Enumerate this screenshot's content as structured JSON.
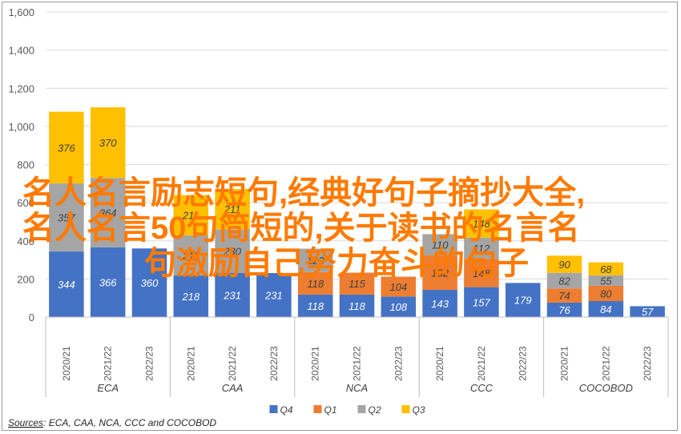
{
  "chart_data": {
    "type": "bar",
    "stacked": true,
    "categories": [
      {
        "group": "ECA",
        "year": "2020/21"
      },
      {
        "group": "ECA",
        "year": "2021/22"
      },
      {
        "group": "ECA",
        "year": "2022/23"
      },
      {
        "group": "CAA",
        "year": "2020/21"
      },
      {
        "group": "CAA",
        "year": "2021/22"
      },
      {
        "group": "CAA",
        "year": "2022/23"
      },
      {
        "group": "NCA",
        "year": "2020/21"
      },
      {
        "group": "NCA",
        "year": "2021/22"
      },
      {
        "group": "NCA",
        "year": "2022/23"
      },
      {
        "group": "CCC",
        "year": "2020/21"
      },
      {
        "group": "CCC",
        "year": "2021/22"
      },
      {
        "group": "CCC",
        "year": "2022/23"
      },
      {
        "group": "COCOBOD",
        "year": "2020/21"
      },
      {
        "group": "COCOBOD",
        "year": "2021/22"
      },
      {
        "group": "COCOBOD",
        "year": "2022/23"
      }
    ],
    "groups": [
      "ECA",
      "CAA",
      "NCA",
      "CCC",
      "COCOBOD"
    ],
    "series": [
      {
        "name": "Q4",
        "color": "#4472c4",
        "text_color": "#ffffff",
        "values": [
          344,
          366,
          360,
          218,
          231,
          231,
          118,
          118,
          108,
          143,
          157,
          179,
          76,
          84,
          57
        ]
      },
      {
        "name": "Q1",
        "color": "#ed7d31",
        "text_color": "#404040",
        "values": [
          null,
          null,
          null,
          null,
          null,
          null,
          118,
          115,
          104,
          182,
          148,
          null,
          74,
          80,
          null
        ]
      },
      {
        "name": "Q2",
        "color": "#a5a5a5",
        "text_color": "#404040",
        "values": [
          357,
          364,
          null,
          211,
          230,
          null,
          123,
          null,
          null,
          110,
          112,
          null,
          82,
          55,
          null
        ]
      },
      {
        "name": "Q3",
        "color": "#ffc000",
        "text_color": "#404040",
        "values": [
          376,
          370,
          null,
          211,
          211,
          null,
          null,
          null,
          null,
          null,
          148,
          null,
          90,
          68,
          null
        ]
      }
    ],
    "ylim": [
      0,
      1600
    ],
    "yticks": [
      "0",
      "200",
      "400",
      "600",
      "800",
      "1,000",
      "1,200",
      "1,400",
      "1,600"
    ],
    "ytick_values": [
      0,
      200,
      400,
      600,
      800,
      1000,
      1200,
      1400,
      1600
    ],
    "grid": true,
    "legend": "bottom",
    "xlabel": "",
    "ylabel": ""
  },
  "source": {
    "label": "Sources",
    "text": ": ECA, CAA, NCA, CCC and COCOBOD"
  },
  "overlay": {
    "line1": "名人名言励志短句,经典好句子摘抄大全,",
    "line2": "名人名言50句简短的,关于读书的名言名",
    "line3": "句激励自己努力奋斗的句子"
  }
}
